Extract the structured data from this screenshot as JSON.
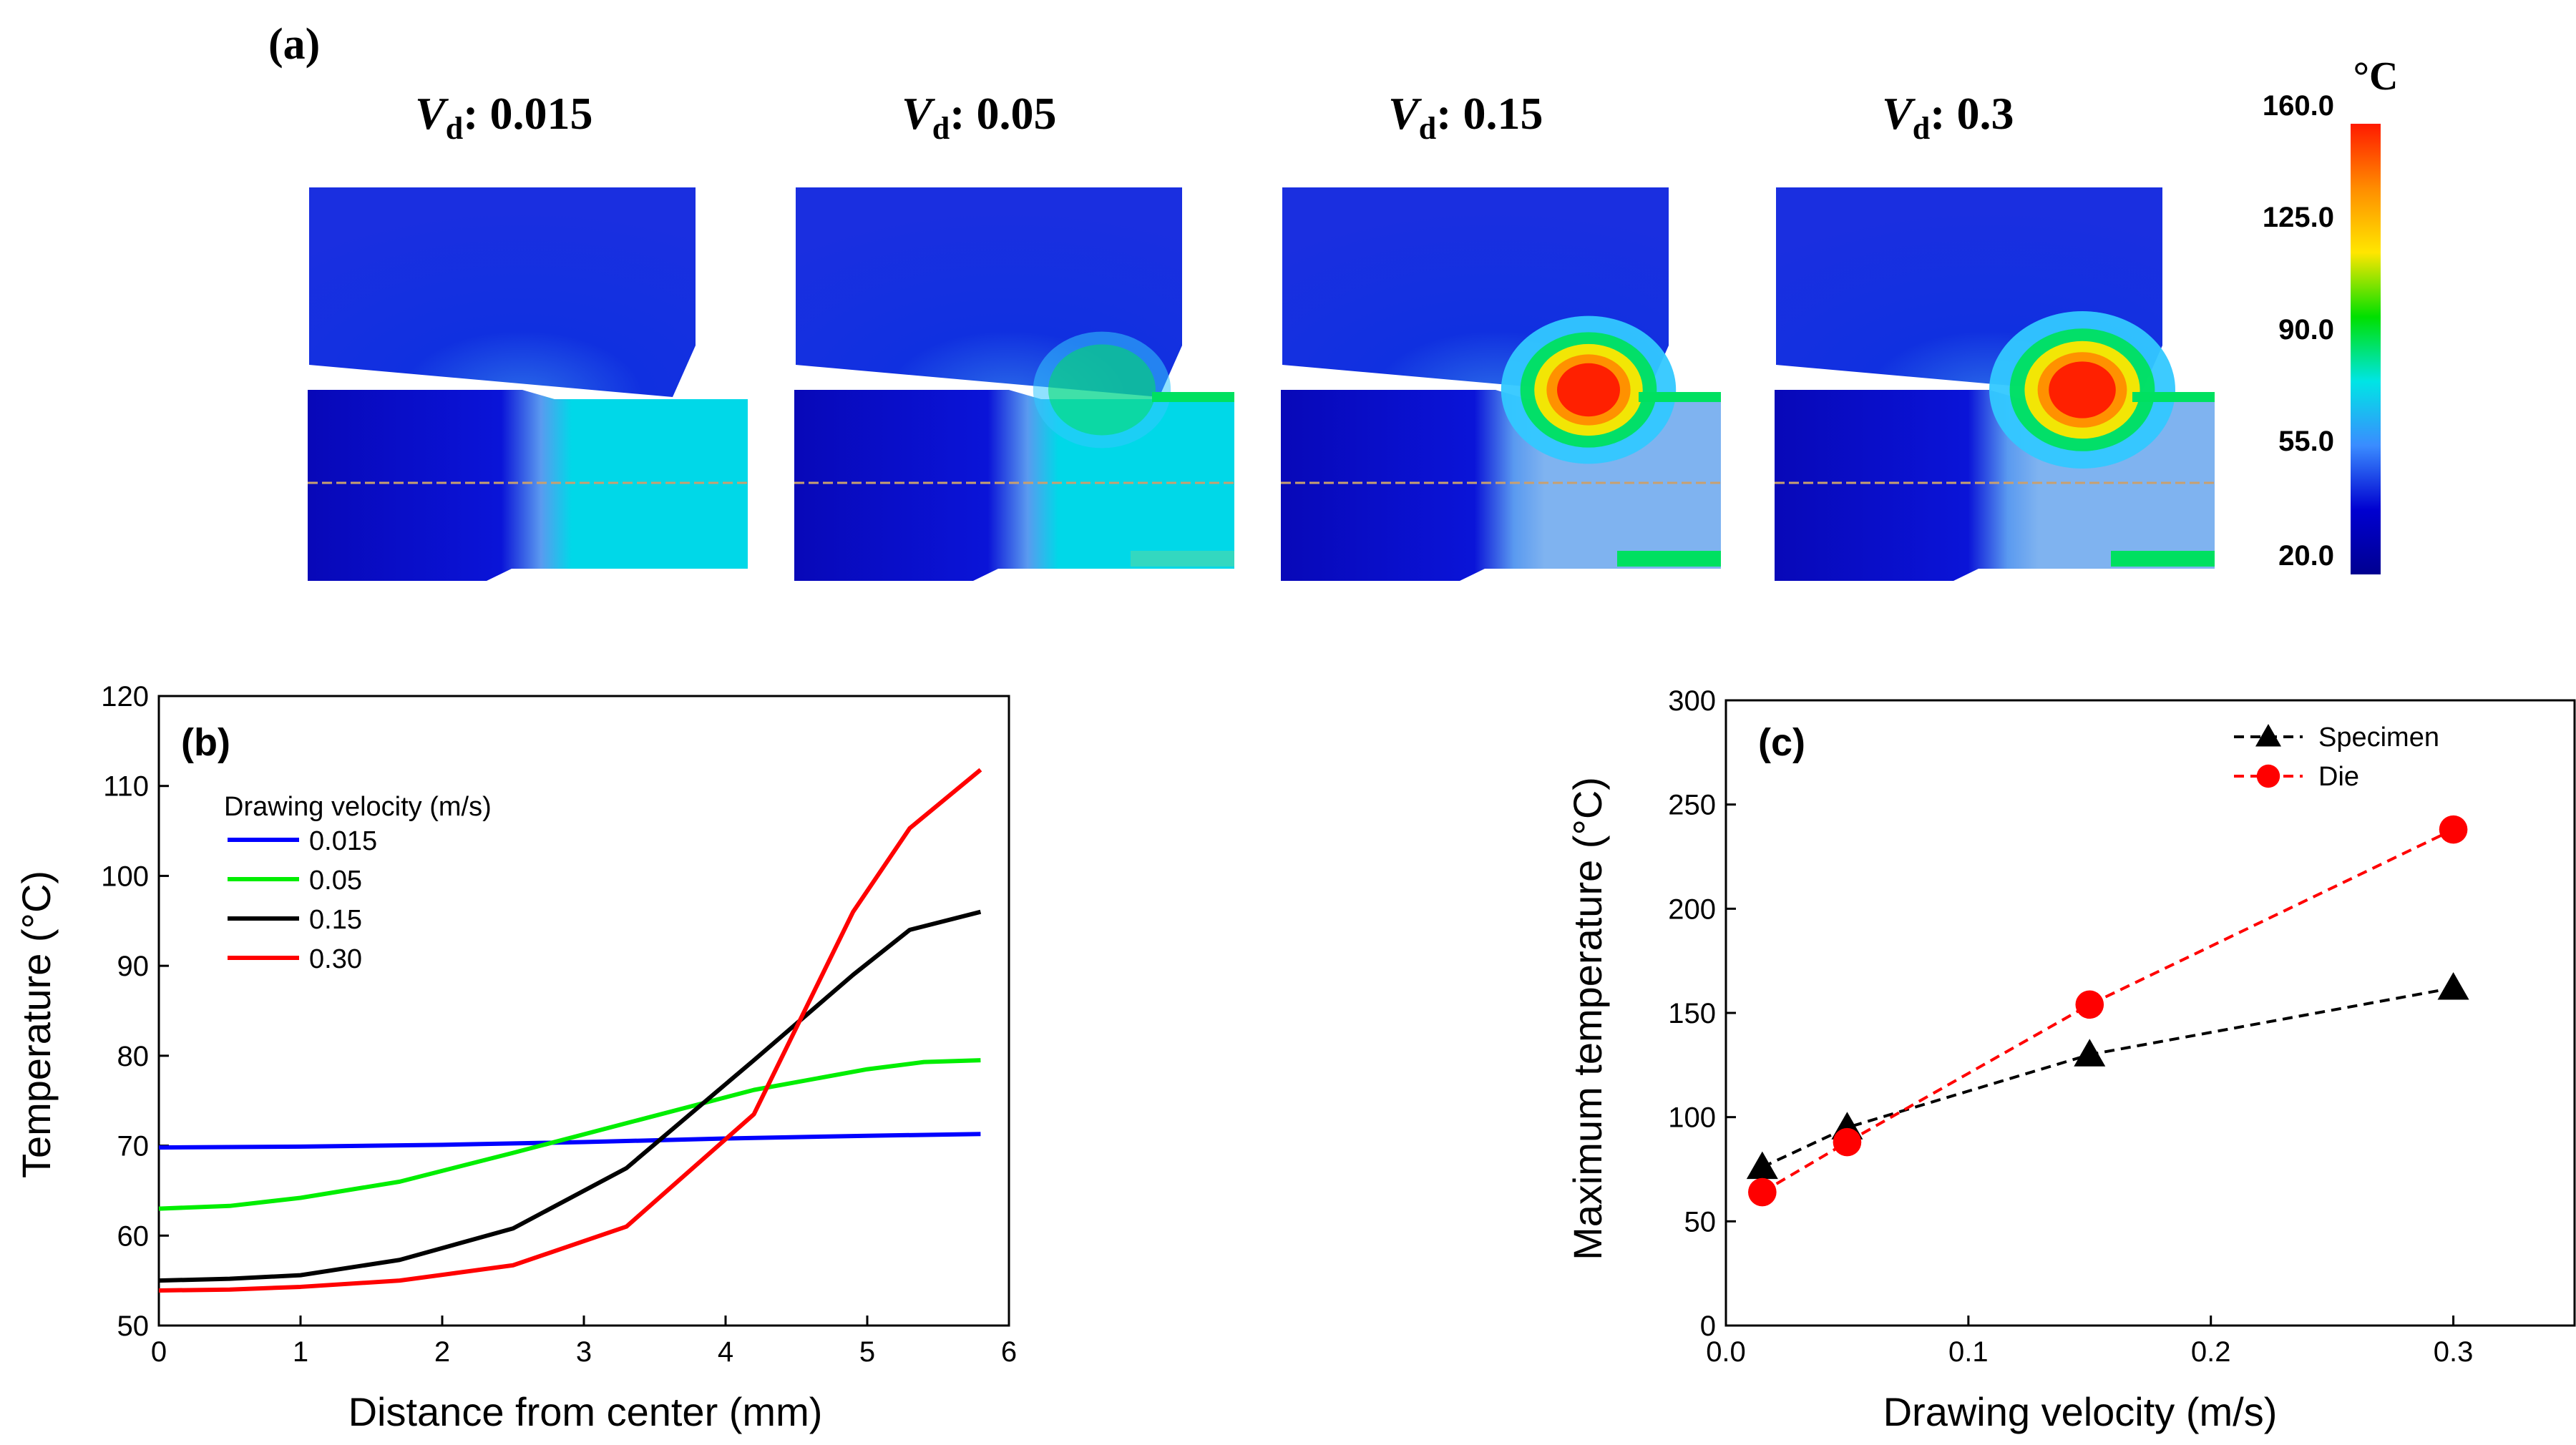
{
  "panel_a": {
    "label": "(a)",
    "symbol": "V",
    "subscript": "d",
    "panels": [
      {
        "value": ": 0.015",
        "hot": 0.0,
        "exit": 0.25
      },
      {
        "value": ": 0.05",
        "hot": 0.35,
        "exit": 0.5
      },
      {
        "value": ": 0.15",
        "hot": 0.85,
        "exit": 0.65
      },
      {
        "value": ": 0.3",
        "hot": 1.0,
        "exit": 0.8
      }
    ],
    "colorbar": {
      "unit": "°C",
      "ticks": [
        "160.0",
        "125.0",
        "90.0",
        "55.0",
        "20.0"
      ],
      "colors": [
        "#ff1a00",
        "#ff8c00",
        "#ffe600",
        "#00e000",
        "#00e5e5",
        "#3a8cff",
        "#0000d0",
        "#000090"
      ]
    }
  },
  "chart_data": [
    {
      "id": "b",
      "type": "line",
      "panel_label": "(b)",
      "xlabel": "Distance from center (mm)",
      "ylabel": "Temperature (°C)",
      "xlim": [
        0,
        6
      ],
      "ylim": [
        50,
        120
      ],
      "xticks": [
        "0",
        "1",
        "2",
        "3",
        "4",
        "5",
        "6"
      ],
      "yticks": [
        "50",
        "60",
        "70",
        "80",
        "90",
        "100",
        "110",
        "120"
      ],
      "legend_title": "Drawing velocity (m/s)",
      "legend_position": "upper-left",
      "series": [
        {
          "name": "0.015",
          "color": "#0000ff",
          "x": [
            0,
            1,
            2,
            3,
            4,
            5,
            5.8
          ],
          "y": [
            69.8,
            69.9,
            70.1,
            70.4,
            70.8,
            71.1,
            71.3
          ]
        },
        {
          "name": "0.05",
          "color": "#00ee00",
          "x": [
            0,
            0.5,
            1,
            1.7,
            2.5,
            3.3,
            4.2,
            5,
            5.4,
            5.8
          ],
          "y": [
            63,
            63.3,
            64.2,
            66,
            69.2,
            72.5,
            76.2,
            78.5,
            79.3,
            79.5
          ]
        },
        {
          "name": "0.15",
          "color": "#000000",
          "x": [
            0,
            0.5,
            1,
            1.7,
            2.5,
            3.3,
            4.2,
            4.9,
            5.3,
            5.8
          ],
          "y": [
            55,
            55.2,
            55.6,
            57.3,
            60.8,
            67.5,
            79.5,
            89,
            94,
            96
          ]
        },
        {
          "name": "0.30",
          "color": "#ff0000",
          "x": [
            0,
            0.5,
            1,
            1.7,
            2.5,
            3.3,
            4.2,
            4.9,
            5.3,
            5.8
          ],
          "y": [
            53.9,
            54,
            54.3,
            55,
            56.7,
            61,
            73.5,
            96,
            105.3,
            111.8
          ]
        }
      ]
    },
    {
      "id": "c",
      "type": "scatter",
      "panel_label": "(c)",
      "xlabel": "Drawing velocity (m/s)",
      "ylabel": "Maximum temperature (°C)",
      "xlim": [
        0,
        0.35
      ],
      "ylim": [
        0,
        300
      ],
      "xticks": [
        "0.0",
        "0.1",
        "0.2",
        "0.3"
      ],
      "yticks": [
        "0",
        "50",
        "100",
        "150",
        "200",
        "250",
        "300"
      ],
      "legend_position": "upper-right",
      "series": [
        {
          "name": "Specimen",
          "color": "#000000",
          "marker": "triangle",
          "x": [
            0.015,
            0.05,
            0.15,
            0.3
          ],
          "y": [
            76,
            95,
            130,
            162
          ]
        },
        {
          "name": "Die",
          "color": "#ff0000",
          "marker": "circle",
          "x": [
            0.015,
            0.05,
            0.15,
            0.3
          ],
          "y": [
            64,
            88,
            154,
            238
          ]
        }
      ]
    }
  ]
}
